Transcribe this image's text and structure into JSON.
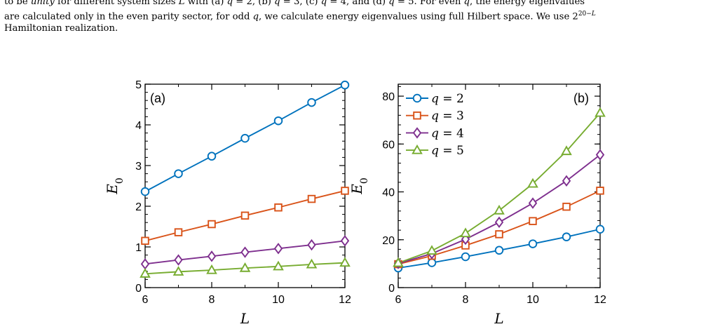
{
  "caption": {
    "line1": "to be unity for different system sizes L with (a) q = 2, (b) q = 3, (c) q = 4, and (d) q = 5. For even q, the energy eigenvalues",
    "line2": "are calculated only in the even parity sector, for odd q, we calculate energy eigenvalues using full Hilbert space. We use 2^(20−L)",
    "line3": "Hamiltonian realization."
  },
  "colors": {
    "q2": "#0072BD",
    "q3": "#D95319",
    "q4": "#7E2F8E",
    "q5": "#77AC30"
  },
  "chart_data": [
    {
      "type": "line",
      "panel_label": "(a)",
      "xlabel": "L",
      "ylabel": "E0",
      "xlim": [
        6,
        12
      ],
      "ylim": [
        0,
        5
      ],
      "xticks": [
        6,
        8,
        10,
        12
      ],
      "yticks": [
        0,
        1,
        2,
        3,
        4,
        5
      ],
      "x": [
        6,
        7,
        8,
        9,
        10,
        11,
        12
      ],
      "series": [
        {
          "key": "q2",
          "marker": "circle",
          "values": [
            2.36,
            2.8,
            3.23,
            3.67,
            4.1,
            4.55,
            4.98
          ]
        },
        {
          "key": "q3",
          "marker": "square",
          "values": [
            1.15,
            1.36,
            1.56,
            1.77,
            1.97,
            2.18,
            2.38
          ]
        },
        {
          "key": "q4",
          "marker": "diamond",
          "values": [
            0.58,
            0.68,
            0.77,
            0.87,
            0.96,
            1.05,
            1.15
          ]
        },
        {
          "key": "q5",
          "marker": "triangle",
          "values": [
            0.34,
            0.39,
            0.43,
            0.48,
            0.52,
            0.57,
            0.61
          ]
        }
      ]
    },
    {
      "type": "line",
      "panel_label": "(b)",
      "xlabel": "L",
      "ylabel": "E0",
      "xlim": [
        6,
        12
      ],
      "ylim": [
        0,
        85
      ],
      "xticks": [
        6,
        8,
        10,
        12
      ],
      "yticks": [
        0,
        20,
        40,
        60,
        80
      ],
      "legend_position": "top-left",
      "x": [
        6,
        7,
        8,
        9,
        10,
        11,
        12
      ],
      "series": [
        {
          "key": "q2",
          "name": "q = 2",
          "marker": "circle",
          "values": [
            8.2,
            10.4,
            12.9,
            15.6,
            18.3,
            21.2,
            24.4
          ]
        },
        {
          "key": "q3",
          "name": "q = 3",
          "marker": "square",
          "values": [
            9.8,
            13.3,
            17.6,
            22.3,
            27.8,
            33.8,
            40.5
          ]
        },
        {
          "key": "q4",
          "name": "q = 4",
          "marker": "diamond",
          "values": [
            10.1,
            14.2,
            20.2,
            27.3,
            35.3,
            44.6,
            55.5
          ]
        },
        {
          "key": "q5",
          "name": "q = 5",
          "marker": "triangle",
          "values": [
            10.3,
            15.4,
            22.7,
            32.2,
            43.4,
            57.0,
            73.0
          ]
        }
      ]
    }
  ]
}
